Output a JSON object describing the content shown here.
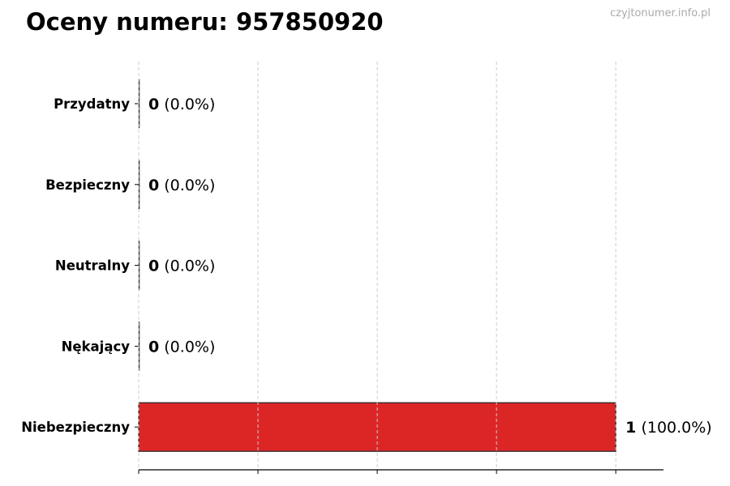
{
  "title": "Oceny numeru: 957850920",
  "watermark": "czyjtonumer.info.pl",
  "chart_data": {
    "type": "bar",
    "orientation": "horizontal",
    "categories": [
      "Przydatny",
      "Bezpieczny",
      "Neutralny",
      "Nękający",
      "Niebezpieczny"
    ],
    "values": [
      0,
      0,
      0,
      0,
      1
    ],
    "labels": [
      "(0.0%)",
      "(0.0%)",
      "(0.0%)",
      "(0.0%)",
      "(100.0%)"
    ],
    "xlim": [
      0,
      1.1
    ],
    "xticks": [
      0,
      0.25,
      0.5,
      0.75,
      1.0
    ],
    "grid": "vertical dashed",
    "colors": {
      "bar": "#dc2626",
      "edge": "#222222",
      "grid": "#cccccc"
    }
  }
}
